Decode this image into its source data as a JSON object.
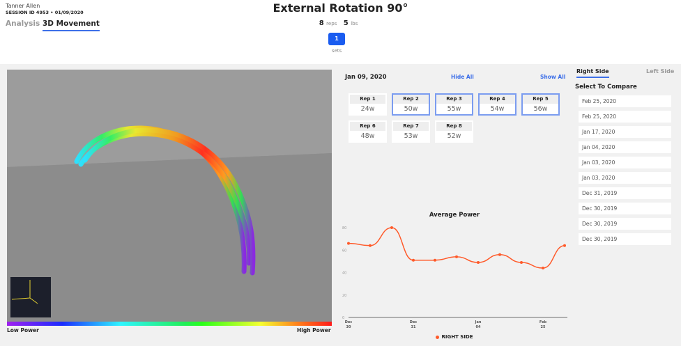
{
  "header": {
    "user": "Tanner Allen",
    "session": "SESSION ID 4953 • 01/09/2020",
    "title": "External Rotation 90°",
    "reps_value": "8",
    "reps_unit": "reps",
    "weight_value": "5",
    "weight_unit": "lbs",
    "set_button": "1",
    "sets_label": "sets"
  },
  "tabs": [
    {
      "label": "Analysis",
      "active": false
    },
    {
      "label": "3D Movement",
      "active": true
    }
  ],
  "viewer": {
    "low_label": "Low Power",
    "high_label": "High Power",
    "colors": [
      "#a020f0",
      "#1a2cff",
      "#2ef5ff",
      "#22ee55",
      "#f5ff30",
      "#ff1a1a"
    ]
  },
  "reps": {
    "date": "Jan 09, 2020",
    "hide_all": "Hide All",
    "show_all": "Show All",
    "items": [
      {
        "label": "Rep 1",
        "value": "24w",
        "selected": false
      },
      {
        "label": "Rep 2",
        "value": "50w",
        "selected": true
      },
      {
        "label": "Rep 3",
        "value": "55w",
        "selected": true
      },
      {
        "label": "Rep 4",
        "value": "54w",
        "selected": true
      },
      {
        "label": "Rep 5",
        "value": "56w",
        "selected": true
      },
      {
        "label": "Rep 6",
        "value": "48w",
        "selected": false
      },
      {
        "label": "Rep 7",
        "value": "53w",
        "selected": false
      },
      {
        "label": "Rep 8",
        "value": "52w",
        "selected": false
      }
    ]
  },
  "compare": {
    "tabs": [
      {
        "label": "Right Side",
        "active": true
      },
      {
        "label": "Left Side",
        "active": false
      }
    ],
    "title": "Select To Compare",
    "dates": [
      "Feb 25, 2020",
      "Feb 25, 2020",
      "Jan 17, 2020",
      "Jan 04, 2020",
      "Jan 03, 2020",
      "Jan 03, 2020",
      "Dec 31, 2019",
      "Dec 30, 2019",
      "Dec 30, 2019",
      "Dec 30, 2019"
    ]
  },
  "chart_data": {
    "type": "line",
    "title": "Average Power",
    "ylim": [
      0,
      80
    ],
    "yticks": [
      0,
      20,
      40,
      60,
      80
    ],
    "xticks": [
      {
        "index": 0,
        "label": [
          "Dec",
          "30"
        ]
      },
      {
        "index": 3,
        "label": [
          "Dec",
          "31"
        ]
      },
      {
        "index": 6,
        "label": [
          "Jan",
          "04"
        ]
      },
      {
        "index": 9,
        "label": [
          "Feb",
          "25"
        ]
      }
    ],
    "series": [
      {
        "name": "RIGHT SIDE",
        "color": "#ff5a2a",
        "values": [
          66,
          64,
          80,
          51,
          51,
          54,
          49,
          56,
          49,
          44,
          64
        ]
      }
    ],
    "legend": "bottom",
    "grid": false
  }
}
